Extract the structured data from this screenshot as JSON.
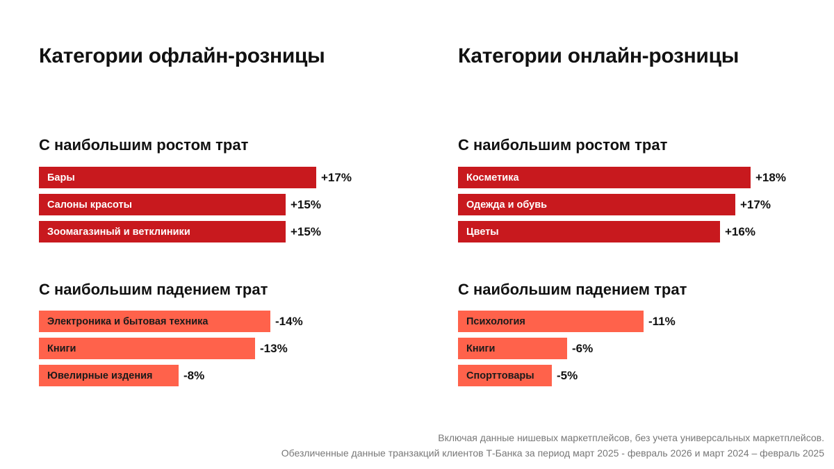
{
  "chart_data": [
    {
      "type": "bar",
      "title": "Категории офлайн-розницы",
      "groups": [
        {
          "subtitle": "С наибольшим ростом трат",
          "categories": [
            "Бары",
            "Салоны красоты",
            "Зоомагазиный и ветклиники"
          ],
          "values": [
            17,
            15,
            15
          ],
          "labels": [
            "+17%",
            "+15%",
            "+15%"
          ],
          "color": "#C8191E"
        },
        {
          "subtitle": "С наибольшим падением трат",
          "categories": [
            "Электроника и бытовая техника",
            "Книги",
            "Ювелирные издения"
          ],
          "values": [
            -14,
            -13,
            -8
          ],
          "labels": [
            "-14%",
            "-13%",
            "-8%"
          ],
          "color": "#FF624B"
        }
      ]
    },
    {
      "type": "bar",
      "title": "Категории онлайн-розницы",
      "groups": [
        {
          "subtitle": "С наибольшим ростом трат",
          "categories": [
            "Косметика",
            "Одежда и обувь",
            "Цветы"
          ],
          "values": [
            18,
            17,
            16
          ],
          "labels": [
            "+18%",
            "+17%",
            "+16%"
          ],
          "color": "#C8191E"
        },
        {
          "subtitle": "С наибольшим падением трат",
          "categories": [
            "Психология",
            "Книги",
            "Спорттовары"
          ],
          "values": [
            -11,
            -6,
            -5
          ],
          "labels": [
            "-11%",
            "-6%",
            "-5%"
          ],
          "color": "#FF624B"
        }
      ]
    }
  ],
  "footnotes": [
    "Включая данные нишевых маркетплейсов, без учета универсальных маркетплейсов.",
    "Обезличенные данные транзакций клиентов Т-Банка за период март 2025 - февраль 2026 и март 2024 – февраль 2025"
  ]
}
